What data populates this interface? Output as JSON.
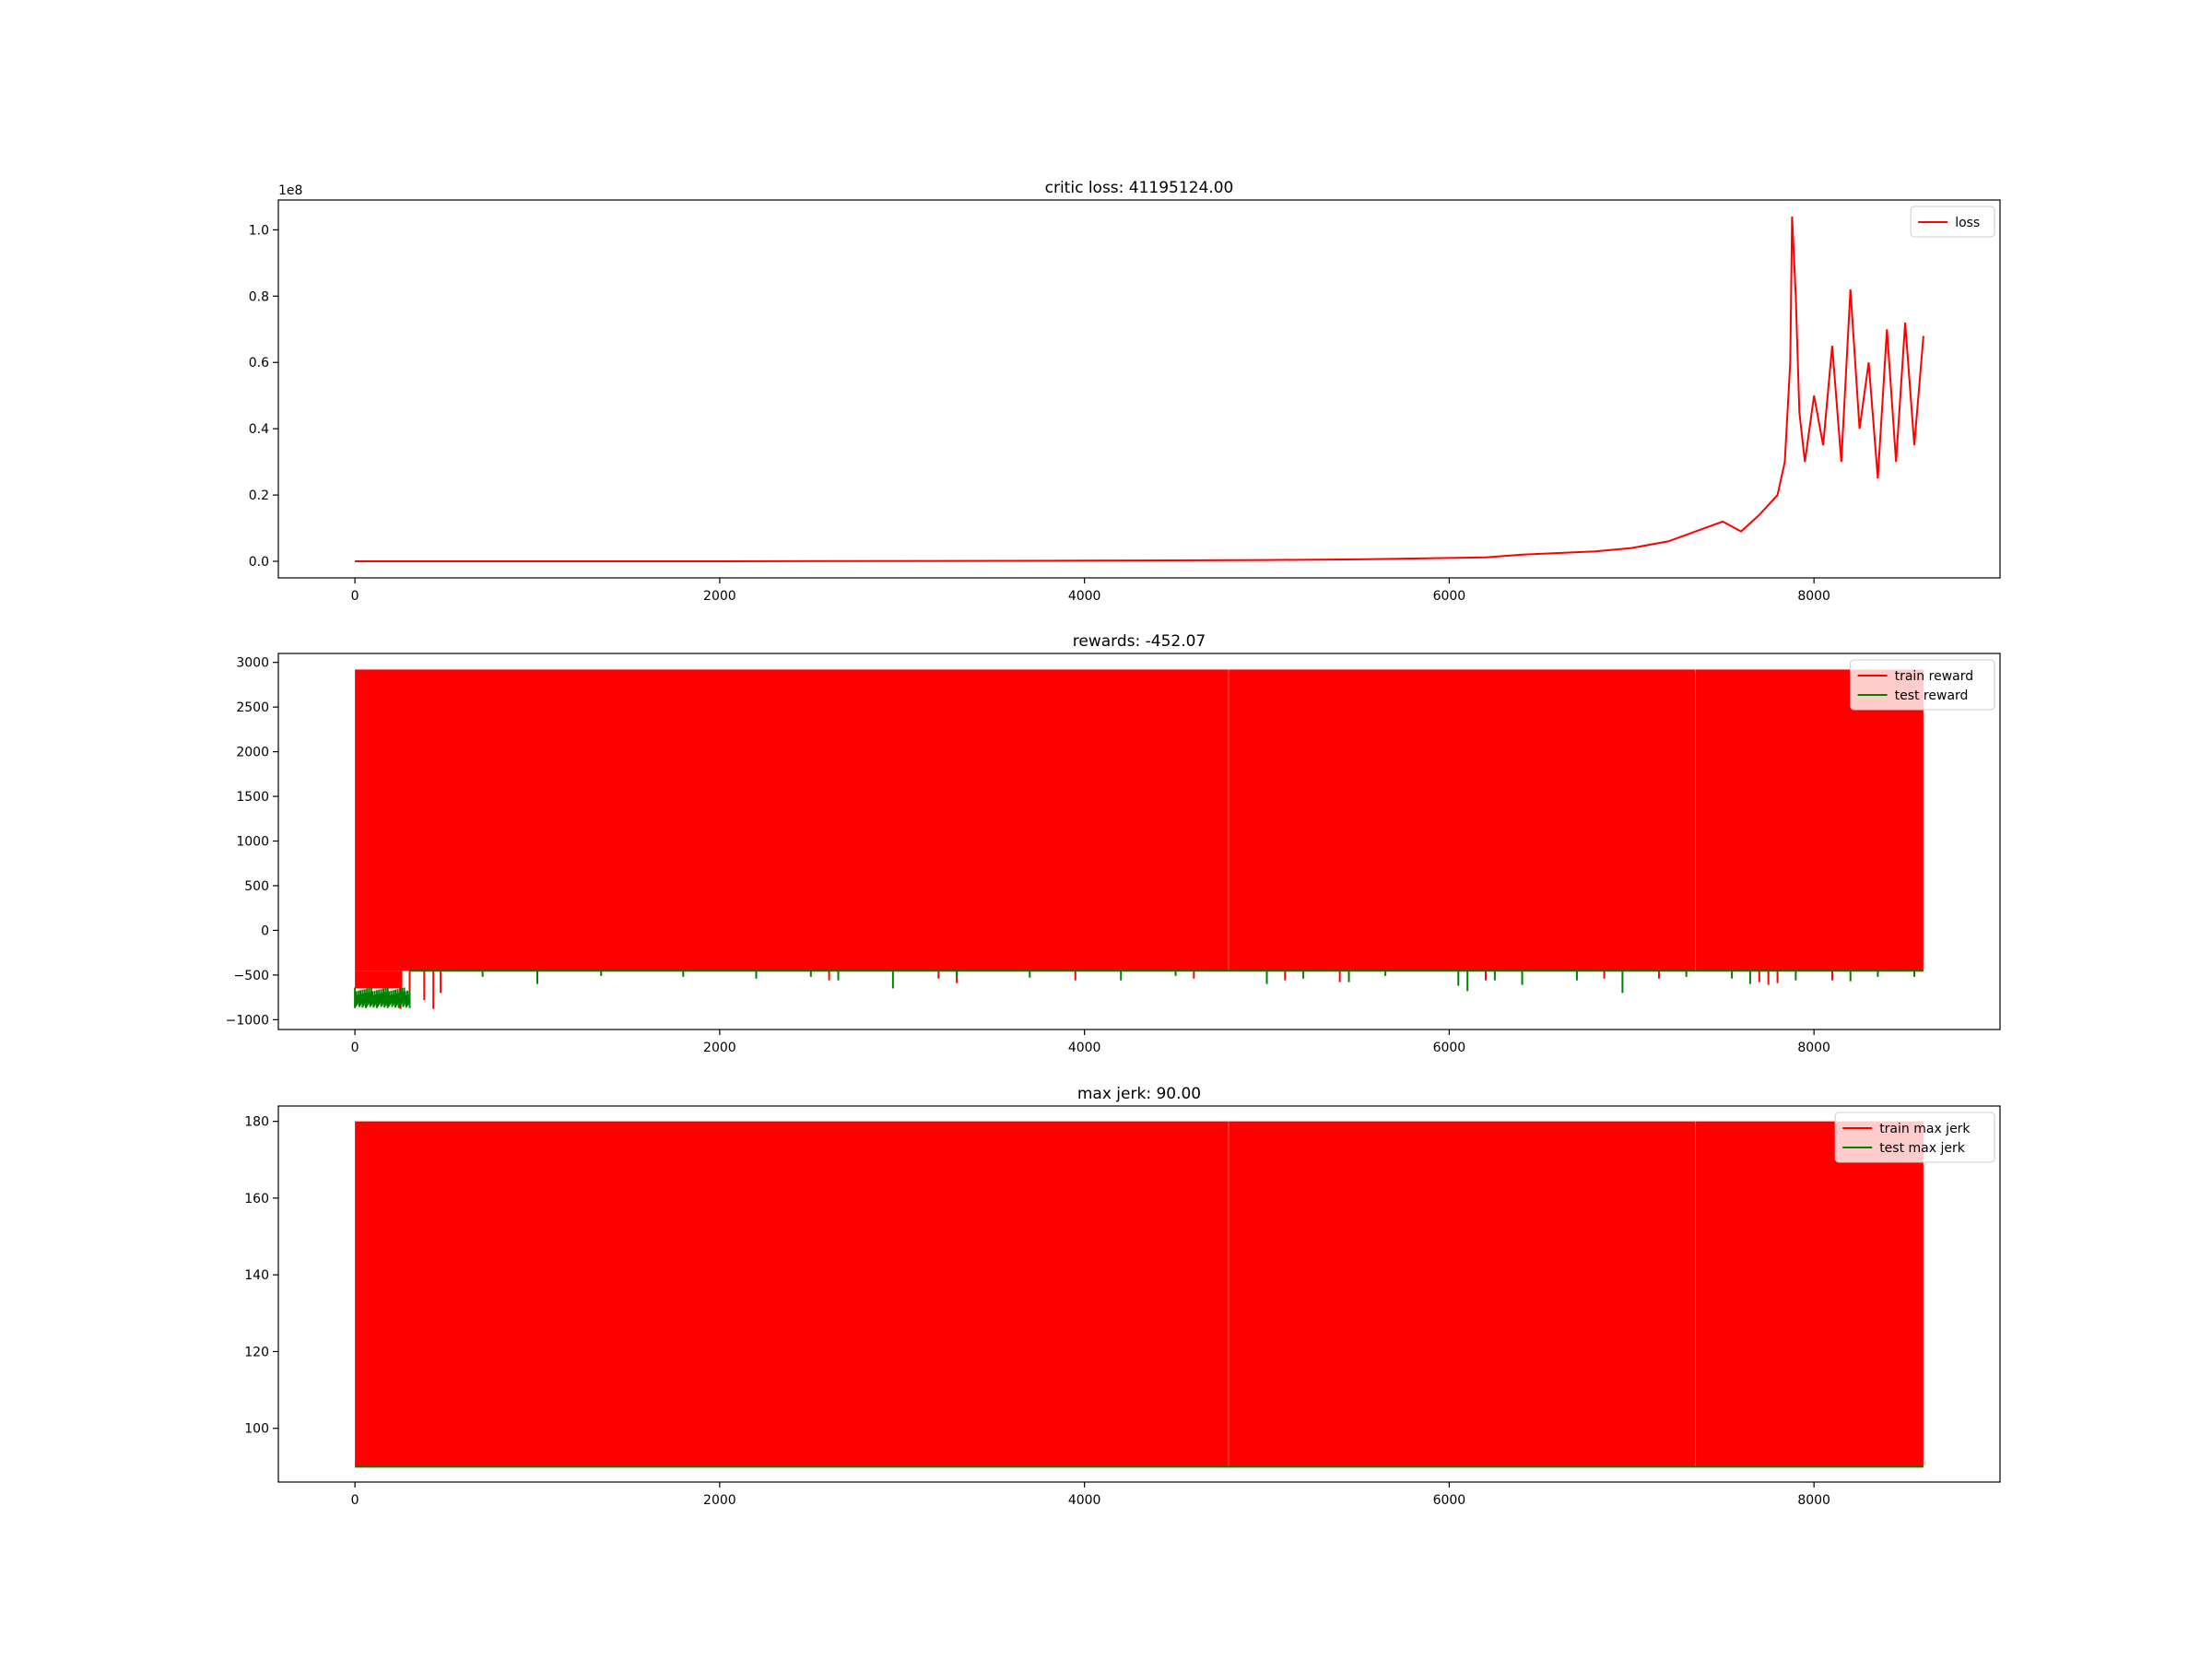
{
  "chart_data": [
    {
      "type": "line",
      "title": "critic loss: 41195124.00",
      "offset_text": "1e8",
      "xlim": [
        -420,
        9020
      ],
      "ylim": [
        -0.05,
        1.09
      ],
      "xticks": [
        0,
        2000,
        4000,
        6000,
        8000
      ],
      "xtick_labels": [
        "0",
        "2000",
        "4000",
        "6000",
        "8000"
      ],
      "yticks": [
        0.0,
        0.2,
        0.4,
        0.6,
        0.8,
        1.0
      ],
      "ytick_labels": [
        "0.0",
        "0.2",
        "0.4",
        "0.6",
        "0.8",
        "1.0"
      ],
      "grid": false,
      "legend": "upper-right",
      "series": [
        {
          "name": "loss",
          "color": "#ff0000",
          "points": [
            [
              0,
              0.0
            ],
            [
              2000,
              0.0
            ],
            [
              4000,
              0.002
            ],
            [
              5000,
              0.004
            ],
            [
              5500,
              0.006
            ],
            [
              6000,
              0.01
            ],
            [
              6200,
              0.012
            ],
            [
              6400,
              0.02
            ],
            [
              6600,
              0.025
            ],
            [
              6800,
              0.03
            ],
            [
              7000,
              0.04
            ],
            [
              7200,
              0.06
            ],
            [
              7400,
              0.1
            ],
            [
              7500,
              0.12
            ],
            [
              7600,
              0.09
            ],
            [
              7700,
              0.14
            ],
            [
              7800,
              0.2
            ],
            [
              7840,
              0.3
            ],
            [
              7870,
              0.6
            ],
            [
              7880,
              1.04
            ],
            [
              7900,
              0.8
            ],
            [
              7920,
              0.45
            ],
            [
              7950,
              0.3
            ],
            [
              8000,
              0.5
            ],
            [
              8050,
              0.35
            ],
            [
              8100,
              0.65
            ],
            [
              8150,
              0.3
            ],
            [
              8200,
              0.82
            ],
            [
              8250,
              0.4
            ],
            [
              8300,
              0.6
            ],
            [
              8350,
              0.25
            ],
            [
              8400,
              0.7
            ],
            [
              8450,
              0.3
            ],
            [
              8500,
              0.72
            ],
            [
              8550,
              0.35
            ],
            [
              8600,
              0.68
            ]
          ]
        }
      ]
    },
    {
      "type": "line",
      "title": "rewards: -452.07",
      "xlim": [
        -420,
        9020
      ],
      "ylim": [
        -1110,
        3100
      ],
      "xticks": [
        0,
        2000,
        4000,
        6000,
        8000
      ],
      "xtick_labels": [
        "0",
        "2000",
        "4000",
        "6000",
        "8000"
      ],
      "yticks": [
        -1000,
        -500,
        0,
        500,
        1000,
        1500,
        2000,
        2500,
        3000
      ],
      "ytick_labels": [
        "−1000",
        "−500",
        "0",
        "500",
        "1000",
        "1500",
        "2000",
        "2500",
        "3000"
      ],
      "grid": false,
      "legend": "upper-right",
      "series": [
        {
          "name": "train reward",
          "color": "#ff0000",
          "band": {
            "x": [
              0,
              8600
            ],
            "low": -452,
            "high": 2920
          },
          "early_low": {
            "x": [
              0,
              260
            ],
            "low": -650
          },
          "spikes": [
            [
              250,
              -880
            ],
            [
              300,
              -750
            ],
            [
              380,
              -780
            ],
            [
              430,
              -880
            ],
            [
              470,
              -700
            ],
            [
              2600,
              -560
            ],
            [
              3200,
              -540
            ],
            [
              3300,
              -590
            ],
            [
              3950,
              -560
            ],
            [
              4600,
              -540
            ],
            [
              5100,
              -560
            ],
            [
              5400,
              -580
            ],
            [
              6200,
              -560
            ],
            [
              6850,
              -540
            ],
            [
              7150,
              -540
            ],
            [
              7700,
              -580
            ],
            [
              7750,
              -610
            ],
            [
              7800,
              -590
            ],
            [
              8100,
              -560
            ]
          ]
        },
        {
          "name": "test reward",
          "color": "#008000",
          "early": {
            "x": [
              0,
              300
            ],
            "low": -870,
            "high": -640
          },
          "line_level": -452,
          "spikes": [
            [
              700,
              -520
            ],
            [
              1000,
              -600
            ],
            [
              1350,
              -510
            ],
            [
              1800,
              -520
            ],
            [
              2200,
              -540
            ],
            [
              2500,
              -520
            ],
            [
              2650,
              -560
            ],
            [
              2950,
              -650
            ],
            [
              3300,
              -530
            ],
            [
              3700,
              -530
            ],
            [
              4200,
              -560
            ],
            [
              4500,
              -510
            ],
            [
              5000,
              -600
            ],
            [
              5200,
              -540
            ],
            [
              5450,
              -580
            ],
            [
              5650,
              -510
            ],
            [
              6050,
              -620
            ],
            [
              6100,
              -680
            ],
            [
              6250,
              -560
            ],
            [
              6400,
              -610
            ],
            [
              6700,
              -560
            ],
            [
              6950,
              -700
            ],
            [
              7300,
              -520
            ],
            [
              7550,
              -540
            ],
            [
              7650,
              -600
            ],
            [
              7900,
              -560
            ],
            [
              8200,
              -570
            ],
            [
              8350,
              -520
            ],
            [
              8550,
              -520
            ]
          ]
        }
      ]
    },
    {
      "type": "line",
      "title": "max jerk: 90.00",
      "xlim": [
        -420,
        9020
      ],
      "ylim": [
        86,
        184
      ],
      "xticks": [
        0,
        2000,
        4000,
        6000,
        8000
      ],
      "xtick_labels": [
        "0",
        "2000",
        "4000",
        "6000",
        "8000"
      ],
      "yticks": [
        100,
        120,
        140,
        160,
        180
      ],
      "ytick_labels": [
        "100",
        "120",
        "140",
        "160",
        "180"
      ],
      "grid": false,
      "legend": "upper-right",
      "series": [
        {
          "name": "train max jerk",
          "color": "#ff0000",
          "band": {
            "x": [
              0,
              8600
            ],
            "low": 90,
            "high": 180
          }
        },
        {
          "name": "test max jerk",
          "color": "#008000",
          "line_level": 90
        }
      ]
    }
  ]
}
